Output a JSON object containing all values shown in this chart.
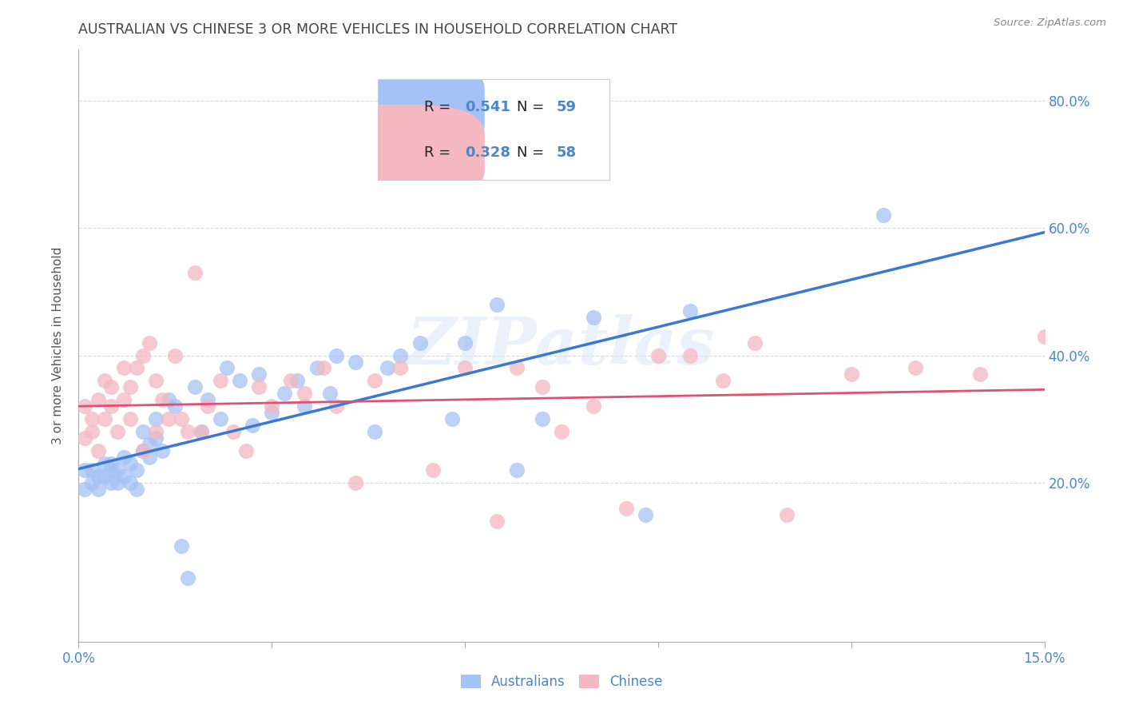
{
  "title": "AUSTRALIAN VS CHINESE 3 OR MORE VEHICLES IN HOUSEHOLD CORRELATION CHART",
  "source": "Source: ZipAtlas.com",
  "ylabel": "3 or more Vehicles in Household",
  "watermark": "ZIPatlas",
  "legend_blue_R": "0.541",
  "legend_blue_N": "59",
  "legend_pink_R": "0.328",
  "legend_pink_N": "58",
  "blue_color": "#a4c2f4",
  "pink_color": "#f4b8c1",
  "blue_line_color": "#3a78d4",
  "pink_line_color": "#e05070",
  "title_color": "#444444",
  "axis_label_color": "#4a86c8",
  "background_color": "#ffffff",
  "grid_color": "#d8d8d8",
  "xlim": [
    0.0,
    0.15
  ],
  "ylim": [
    -0.05,
    0.88
  ],
  "blue_scatter_x": [
    0.001,
    0.001,
    0.002,
    0.002,
    0.003,
    0.003,
    0.004,
    0.004,
    0.005,
    0.005,
    0.005,
    0.006,
    0.006,
    0.007,
    0.007,
    0.008,
    0.008,
    0.009,
    0.009,
    0.01,
    0.01,
    0.011,
    0.011,
    0.012,
    0.012,
    0.013,
    0.014,
    0.015,
    0.016,
    0.017,
    0.018,
    0.019,
    0.02,
    0.022,
    0.023,
    0.025,
    0.027,
    0.028,
    0.03,
    0.032,
    0.034,
    0.035,
    0.037,
    0.039,
    0.04,
    0.043,
    0.046,
    0.048,
    0.05,
    0.053,
    0.058,
    0.06,
    0.065,
    0.068,
    0.072,
    0.08,
    0.088,
    0.095,
    0.125
  ],
  "blue_scatter_y": [
    0.22,
    0.19,
    0.2,
    0.22,
    0.21,
    0.19,
    0.23,
    0.21,
    0.22,
    0.2,
    0.23,
    0.2,
    0.22,
    0.24,
    0.21,
    0.23,
    0.2,
    0.22,
    0.19,
    0.25,
    0.28,
    0.26,
    0.24,
    0.3,
    0.27,
    0.25,
    0.33,
    0.32,
    0.1,
    0.05,
    0.35,
    0.28,
    0.33,
    0.3,
    0.38,
    0.36,
    0.29,
    0.37,
    0.31,
    0.34,
    0.36,
    0.32,
    0.38,
    0.34,
    0.4,
    0.39,
    0.28,
    0.38,
    0.4,
    0.42,
    0.3,
    0.42,
    0.48,
    0.22,
    0.3,
    0.46,
    0.15,
    0.47,
    0.62
  ],
  "pink_scatter_x": [
    0.001,
    0.001,
    0.002,
    0.002,
    0.003,
    0.003,
    0.004,
    0.004,
    0.005,
    0.005,
    0.006,
    0.007,
    0.007,
    0.008,
    0.008,
    0.009,
    0.01,
    0.01,
    0.011,
    0.012,
    0.012,
    0.013,
    0.014,
    0.015,
    0.016,
    0.017,
    0.018,
    0.019,
    0.02,
    0.022,
    0.024,
    0.026,
    0.028,
    0.03,
    0.033,
    0.035,
    0.038,
    0.04,
    0.043,
    0.046,
    0.05,
    0.055,
    0.06,
    0.065,
    0.068,
    0.072,
    0.075,
    0.08,
    0.085,
    0.09,
    0.095,
    0.1,
    0.105,
    0.11,
    0.12,
    0.13,
    0.14,
    0.15
  ],
  "pink_scatter_y": [
    0.27,
    0.32,
    0.28,
    0.3,
    0.25,
    0.33,
    0.36,
    0.3,
    0.35,
    0.32,
    0.28,
    0.33,
    0.38,
    0.35,
    0.3,
    0.38,
    0.25,
    0.4,
    0.42,
    0.36,
    0.28,
    0.33,
    0.3,
    0.4,
    0.3,
    0.28,
    0.53,
    0.28,
    0.32,
    0.36,
    0.28,
    0.25,
    0.35,
    0.32,
    0.36,
    0.34,
    0.38,
    0.32,
    0.2,
    0.36,
    0.38,
    0.22,
    0.38,
    0.14,
    0.38,
    0.35,
    0.28,
    0.32,
    0.16,
    0.4,
    0.4,
    0.36,
    0.42,
    0.15,
    0.37,
    0.38,
    0.37,
    0.43
  ],
  "x_tick_positions": [
    0.0,
    0.03,
    0.06,
    0.09,
    0.12,
    0.15
  ],
  "x_tick_labels_show": [
    "0.0%",
    "",
    "",
    "",
    "",
    "15.0%"
  ],
  "y_tick_positions": [
    0.2,
    0.4,
    0.6,
    0.8
  ],
  "y_tick_labels": [
    "20.0%",
    "40.0%",
    "60.0%",
    "80.0%"
  ]
}
